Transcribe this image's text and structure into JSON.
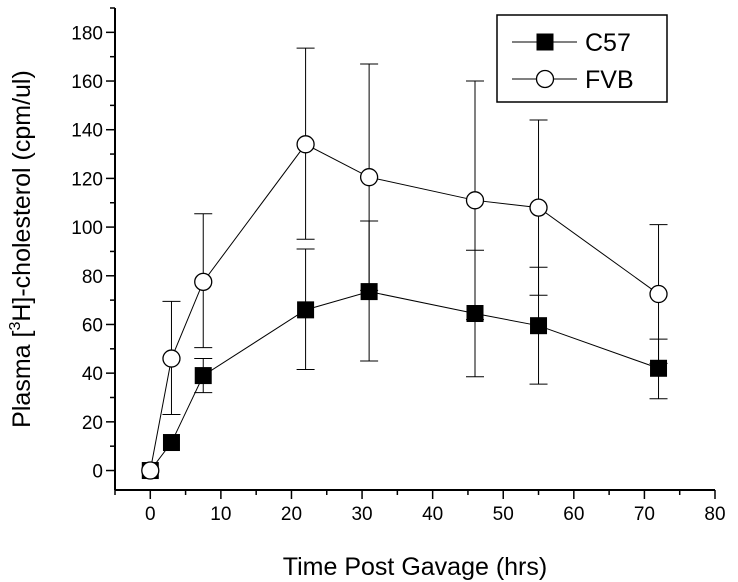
{
  "chart_data": {
    "type": "line",
    "xlabel": "Time Post Gavage (hrs)",
    "ylabel": {
      "before": "Plasma [",
      "superscript": "3",
      "after": "H]-cholesterol (cpm/ul)"
    },
    "xlim": [
      -5,
      80
    ],
    "ylim": [
      -8,
      190
    ],
    "x_ticks": [
      0,
      10,
      20,
      30,
      40,
      50,
      60,
      70,
      80
    ],
    "y_ticks": [
      0,
      20,
      40,
      60,
      80,
      100,
      120,
      140,
      160,
      180
    ],
    "grid": false,
    "legend_position": "top-right",
    "series": [
      {
        "name": "C57",
        "marker": "filled-square",
        "color": "#000000",
        "x": [
          0,
          3,
          7.5,
          22,
          31,
          46,
          55,
          72
        ],
        "y": [
          0,
          11.5,
          39,
          66,
          73.5,
          64.5,
          59.5,
          42
        ],
        "err_low": [
          0,
          0,
          32,
          41.5,
          45,
          38.5,
          35.5,
          29.5
        ],
        "err_high": [
          0,
          0,
          46,
          91,
          102.5,
          90.5,
          83.5,
          54
        ]
      },
      {
        "name": "FVB",
        "marker": "open-circle",
        "color": "#000000",
        "x": [
          0,
          3,
          7.5,
          22,
          31,
          46,
          55,
          72
        ],
        "y": [
          0,
          46,
          77.5,
          134,
          120.5,
          111,
          108,
          72.5
        ],
        "err_low": [
          0,
          23,
          50.5,
          95,
          74,
          62,
          72,
          44
        ],
        "err_high": [
          0,
          69.5,
          105.5,
          173.5,
          167,
          160,
          144,
          101
        ]
      }
    ]
  }
}
